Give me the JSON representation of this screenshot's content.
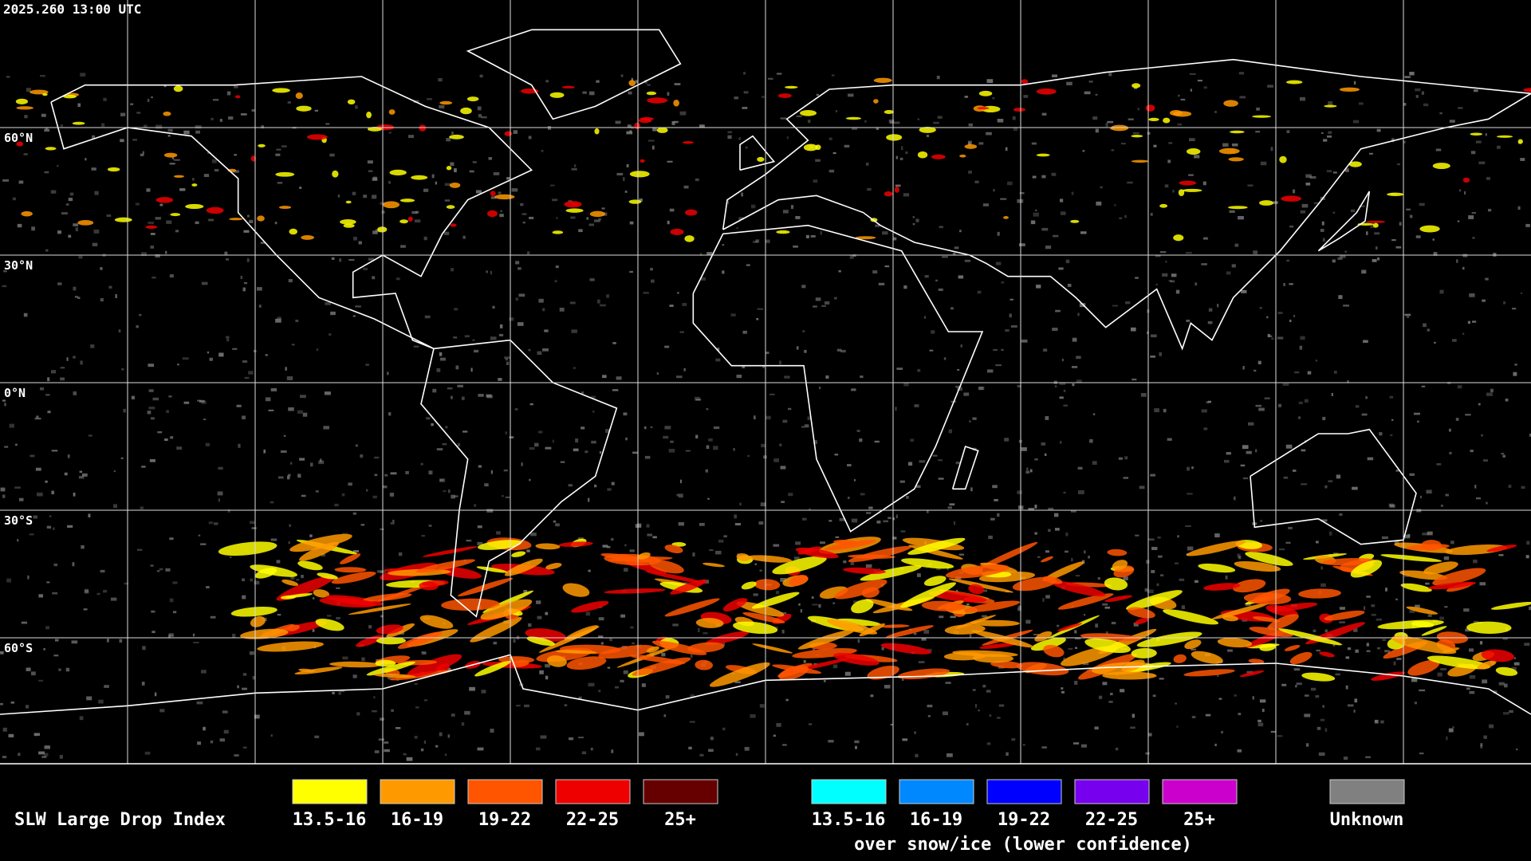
{
  "header": {
    "timestamp": "2025.260 13:00 UTC"
  },
  "map": {
    "latitude_labels": [
      "60°N",
      "30°N",
      "0°N",
      "30°S",
      "60°S"
    ]
  },
  "legend": {
    "title": "SLW Large Drop Index",
    "groups": [
      {
        "items": [
          {
            "label": "13.5-16",
            "color": "#ffff00"
          },
          {
            "label": "16-19",
            "color": "#ff9900"
          },
          {
            "label": "19-22",
            "color": "#ff5500"
          },
          {
            "label": "22-25",
            "color": "#ee0000"
          },
          {
            "label": "25+",
            "color": "#660000"
          }
        ]
      },
      {
        "items": [
          {
            "label": "13.5-16",
            "color": "#00ffff"
          },
          {
            "label": "16-19",
            "color": "#0088ff"
          },
          {
            "label": "19-22",
            "color": "#0000ff"
          },
          {
            "label": "22-25",
            "color": "#7700ee"
          },
          {
            "label": "25+",
            "color": "#cc00cc"
          }
        ],
        "caption": "over snow/ice (lower confidence)"
      },
      {
        "items": [
          {
            "label": "Unknown",
            "color": "#808080"
          }
        ]
      }
    ]
  }
}
